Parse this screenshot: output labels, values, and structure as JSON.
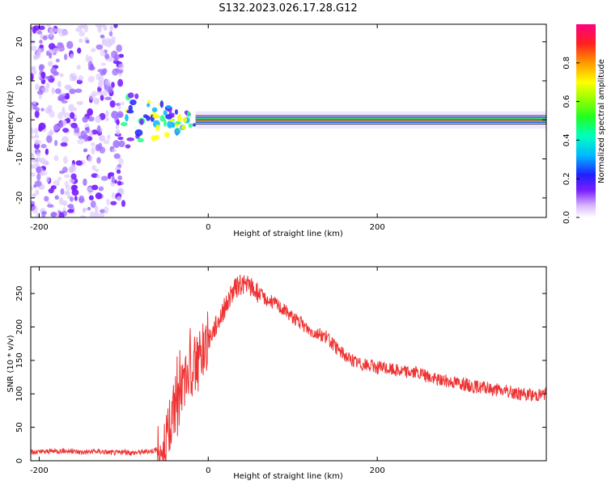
{
  "figure_title": "S132.2023.026.17.28.G12",
  "chart_data": [
    {
      "type": "heatmap",
      "xlabel": "Height of straight line (km)",
      "ylabel": "Frequency (Hz)",
      "xlim": [
        -210,
        400
      ],
      "ylim": [
        -25,
        24.5
      ],
      "xticks": [
        -200,
        0,
        200
      ],
      "yticks": [
        -20,
        -10,
        0,
        10,
        20
      ],
      "colorbar": {
        "label": "Normalized spectral amplitude",
        "range": [
          0,
          1
        ],
        "ticks": [
          "0.0",
          "0.2",
          "0.4",
          "0.6",
          "0.8"
        ]
      },
      "features": {
        "noise_region_x": [
          -210,
          -100
        ],
        "transition_region_x": [
          -100,
          -15
        ],
        "central_band_x": [
          -15,
          400
        ],
        "central_band_frequency_hz": 0
      }
    },
    {
      "type": "line",
      "xlabel": "Height of straight line (km)",
      "ylabel": "SNR (10 * v/v)",
      "xlim": [
        -210,
        400
      ],
      "ylim": [
        0,
        290
      ],
      "xticks": [
        -200,
        0,
        200
      ],
      "yticks": [
        0,
        50,
        100,
        150,
        200,
        250
      ],
      "series": [
        {
          "color": "#ee3333",
          "x": [
            -210,
            -190,
            -170,
            -150,
            -130,
            -110,
            -100,
            -90,
            -80,
            -70,
            -60,
            -55,
            -50,
            -45,
            -40,
            -35,
            -30,
            -25,
            -20,
            -15,
            -10,
            -5,
            0,
            10,
            20,
            30,
            40,
            50,
            60,
            70,
            80,
            90,
            100,
            110,
            120,
            130,
            140,
            150,
            160,
            170,
            180,
            190,
            200,
            210,
            220,
            230,
            240,
            250,
            260,
            270,
            280,
            290,
            300,
            310,
            320,
            330,
            340,
            350,
            360,
            370,
            380,
            390,
            400
          ],
          "y": [
            12,
            14,
            15,
            13,
            14,
            12,
            13,
            12,
            13,
            14,
            17,
            22,
            35,
            55,
            80,
            95,
            110,
            120,
            135,
            145,
            160,
            170,
            180,
            205,
            230,
            255,
            265,
            260,
            250,
            240,
            235,
            225,
            215,
            205,
            195,
            190,
            185,
            170,
            160,
            150,
            145,
            142,
            140,
            138,
            136,
            134,
            133,
            130,
            125,
            122,
            120,
            118,
            116,
            112,
            110,
            108,
            106,
            104,
            102,
            100,
            98,
            99,
            100
          ]
        }
      ]
    }
  ]
}
